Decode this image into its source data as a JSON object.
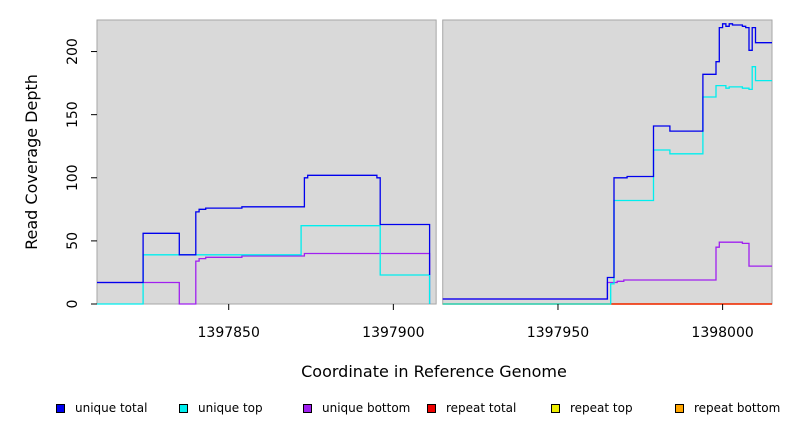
{
  "chart_data": {
    "type": "line",
    "xlabel": "Coordinate in Reference Genome",
    "ylabel": "Read Coverage Depth",
    "xlim": [
      1397810,
      1398015
    ],
    "ylim": [
      0,
      225
    ],
    "x_ticks": [
      1397850,
      1397900,
      1397950,
      1398000
    ],
    "y_ticks": [
      0,
      50,
      100,
      150,
      200
    ],
    "gap": [
      1397913,
      1397915
    ],
    "legend_position": "bottom",
    "background": "#d9d9d9",
    "series": [
      {
        "name": "unique total",
        "color": "#0000ee",
        "steps": [
          [
            1397810,
            17
          ],
          [
            1397824,
            56
          ],
          [
            1397835,
            39
          ],
          [
            1397840,
            73
          ],
          [
            1397841,
            75
          ],
          [
            1397843,
            76
          ],
          [
            1397852,
            76
          ],
          [
            1397854,
            77
          ],
          [
            1397872,
            77
          ],
          [
            1397873,
            100
          ],
          [
            1397874,
            102
          ],
          [
            1397895,
            100
          ],
          [
            1397896,
            63
          ],
          [
            1397911,
            23
          ],
          [
            1397913,
            null
          ],
          [
            1397915,
            4
          ],
          [
            1397965,
            21
          ],
          [
            1397967,
            100
          ],
          [
            1397971,
            101
          ],
          [
            1397979,
            141
          ],
          [
            1397984,
            137
          ],
          [
            1397994,
            182
          ],
          [
            1397998,
            192
          ],
          [
            1397999,
            219
          ],
          [
            1398000,
            222
          ],
          [
            1398001,
            220
          ],
          [
            1398002,
            222
          ],
          [
            1398003,
            221
          ],
          [
            1398006,
            220
          ],
          [
            1398007,
            219
          ],
          [
            1398008,
            201
          ],
          [
            1398009,
            219
          ],
          [
            1398010,
            207
          ],
          [
            1398015,
            207
          ]
        ]
      },
      {
        "name": "unique top",
        "color": "#00eeee",
        "steps": [
          [
            1397810,
            0
          ],
          [
            1397824,
            39
          ],
          [
            1397872,
            62
          ],
          [
            1397896,
            23
          ],
          [
            1397911,
            0
          ],
          [
            1397913,
            null
          ],
          [
            1397915,
            0
          ],
          [
            1397966,
            16
          ],
          [
            1397967,
            82
          ],
          [
            1397979,
            122
          ],
          [
            1397984,
            119
          ],
          [
            1397994,
            164
          ],
          [
            1397998,
            173
          ],
          [
            1398001,
            171
          ],
          [
            1398002,
            172
          ],
          [
            1398006,
            171
          ],
          [
            1398008,
            170
          ],
          [
            1398009,
            188
          ],
          [
            1398010,
            177
          ],
          [
            1398015,
            177
          ]
        ]
      },
      {
        "name": "unique bottom",
        "color": "#a020f0",
        "steps": [
          [
            1397810,
            17
          ],
          [
            1397835,
            0
          ],
          [
            1397840,
            34
          ],
          [
            1397841,
            36
          ],
          [
            1397843,
            37
          ],
          [
            1397852,
            37
          ],
          [
            1397854,
            38
          ],
          [
            1397873,
            40
          ],
          [
            1397911,
            0
          ],
          [
            1397913,
            null
          ],
          [
            1397915,
            4
          ],
          [
            1397965,
            17
          ],
          [
            1397968,
            18
          ],
          [
            1397970,
            19
          ],
          [
            1397998,
            45
          ],
          [
            1397999,
            49
          ],
          [
            1398006,
            48
          ],
          [
            1398008,
            30
          ],
          [
            1398015,
            30
          ]
        ]
      },
      {
        "name": "repeat total",
        "color": "#ee0000",
        "steps": [
          [
            1397810,
            0
          ],
          [
            1397913,
            null
          ],
          [
            1397915,
            0
          ],
          [
            1398015,
            0
          ]
        ]
      },
      {
        "name": "repeat top",
        "color": "#eeee00",
        "steps": [
          [
            1397810,
            0
          ],
          [
            1397913,
            null
          ],
          [
            1397915,
            0
          ],
          [
            1398015,
            0
          ]
        ]
      },
      {
        "name": "repeat bottom",
        "color": "#ffa500",
        "steps": [
          [
            1397810,
            0
          ],
          [
            1397913,
            null
          ],
          [
            1397915,
            0
          ],
          [
            1398015,
            0
          ]
        ]
      }
    ]
  },
  "legend": [
    {
      "label": "unique total",
      "color": "#0000ee"
    },
    {
      "label": "unique top",
      "color": "#00eeee"
    },
    {
      "label": "unique bottom",
      "color": "#a020f0"
    },
    {
      "label": "repeat total",
      "color": "#ee0000"
    },
    {
      "label": "repeat top",
      "color": "#eeee00"
    },
    {
      "label": "repeat bottom",
      "color": "#ffa500"
    }
  ]
}
